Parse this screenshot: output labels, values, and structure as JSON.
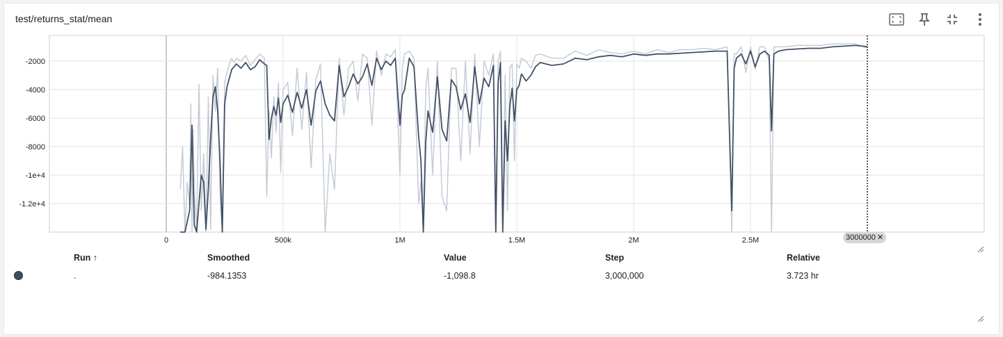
{
  "card": {
    "title": "test/returns_stat/mean"
  },
  "toolbar": {
    "icons": [
      "fit-domain-icon",
      "pin-icon",
      "collapse-icon",
      "more-vert-icon"
    ]
  },
  "chart_data": {
    "type": "line",
    "title": "test/returns_stat/mean",
    "xlabel": "",
    "ylabel": "",
    "xlim": [
      -500000,
      3500000
    ],
    "ylim": [
      -14000,
      -200
    ],
    "x_ticks": [
      {
        "value": 0,
        "label": "0"
      },
      {
        "value": 500000,
        "label": "500k"
      },
      {
        "value": 1000000,
        "label": "1M"
      },
      {
        "value": 1500000,
        "label": "1.5M"
      },
      {
        "value": 2000000,
        "label": "2M"
      },
      {
        "value": 2500000,
        "label": "2.5M"
      }
    ],
    "y_ticks": [
      {
        "value": -2000,
        "label": "-2000"
      },
      {
        "value": -4000,
        "label": "-4000"
      },
      {
        "value": -6000,
        "label": "-6000"
      },
      {
        "value": -8000,
        "label": "-8000"
      },
      {
        "value": -10000,
        "label": "-1e+4"
      },
      {
        "value": -12000,
        "label": "-1.2e+4"
      }
    ],
    "grid": true,
    "cursor_step": 3000000,
    "cursor_label": "3000000",
    "series": [
      {
        "name": "smoothed",
        "color": "#425066",
        "x": [
          60000,
          80000,
          100000,
          110000,
          120000,
          130000,
          140000,
          150000,
          160000,
          170000,
          180000,
          190000,
          200000,
          210000,
          220000,
          230000,
          240000,
          250000,
          260000,
          270000,
          280000,
          290000,
          300000,
          320000,
          340000,
          360000,
          380000,
          400000,
          420000,
          430000,
          440000,
          450000,
          460000,
          470000,
          480000,
          490000,
          500000,
          520000,
          540000,
          560000,
          580000,
          600000,
          620000,
          640000,
          660000,
          680000,
          700000,
          720000,
          740000,
          760000,
          780000,
          800000,
          820000,
          840000,
          860000,
          880000,
          900000,
          920000,
          940000,
          960000,
          980000,
          1000000,
          1010000,
          1020000,
          1040000,
          1060000,
          1080000,
          1090000,
          1100000,
          1110000,
          1120000,
          1140000,
          1160000,
          1180000,
          1200000,
          1220000,
          1240000,
          1260000,
          1280000,
          1300000,
          1320000,
          1340000,
          1360000,
          1380000,
          1400000,
          1410000,
          1420000,
          1430000,
          1440000,
          1450000,
          1460000,
          1470000,
          1480000,
          1490000,
          1500000,
          1510000,
          1520000,
          1540000,
          1560000,
          1580000,
          1600000,
          1650000,
          1700000,
          1750000,
          1800000,
          1850000,
          1900000,
          1950000,
          2000000,
          2050000,
          2100000,
          2150000,
          2200000,
          2250000,
          2300000,
          2350000,
          2400000,
          2420000,
          2430000,
          2440000,
          2460000,
          2480000,
          2500000,
          2520000,
          2540000,
          2560000,
          2580000,
          2590000,
          2600000,
          2620000,
          2650000,
          2700000,
          2750000,
          2800000,
          2850000,
          2900000,
          2950000,
          3000000
        ],
        "y": [
          -14000,
          -14000,
          -12500,
          -6500,
          -13500,
          -14000,
          -12000,
          -10000,
          -10500,
          -13800,
          -11000,
          -7500,
          -4500,
          -3800,
          -5500,
          -9000,
          -14000,
          -5000,
          -3800,
          -3200,
          -2600,
          -2400,
          -2200,
          -2500,
          -2100,
          -2600,
          -2400,
          -1900,
          -2200,
          -2300,
          -7500,
          -6000,
          -5200,
          -5800,
          -4600,
          -6300,
          -5000,
          -4400,
          -5600,
          -4200,
          -5300,
          -4000,
          -6500,
          -4100,
          -3400,
          -5000,
          -5800,
          -6200,
          -2300,
          -4500,
          -3800,
          -2900,
          -3600,
          -3100,
          -2200,
          -3700,
          -1800,
          -2600,
          -2000,
          -2300,
          -1800,
          -6500,
          -4400,
          -4000,
          -1800,
          -2400,
          -7300,
          -9000,
          -14000,
          -7800,
          -5500,
          -7000,
          -3100,
          -6800,
          -7600,
          -3300,
          -3800,
          -5400,
          -4300,
          -6300,
          -2400,
          -5000,
          -3200,
          -3800,
          -2300,
          -14000,
          -3600,
          -2100,
          -14000,
          -6200,
          -9000,
          -5200,
          -3900,
          -6200,
          -4000,
          -3700,
          -2900,
          -3400,
          -3000,
          -2400,
          -2100,
          -2300,
          -2200,
          -1800,
          -1900,
          -1700,
          -1600,
          -1700,
          -1500,
          -1600,
          -1500,
          -1500,
          -1450,
          -1400,
          -1350,
          -1300,
          -1300,
          -12500,
          -2500,
          -1800,
          -1500,
          -2200,
          -1300,
          -2400,
          -1500,
          -1300,
          -1600,
          -6900,
          -1500,
          -1300,
          -1200,
          -1150,
          -1100,
          -1100,
          -1000,
          -950,
          -900,
          -984
        ]
      },
      {
        "name": "raw",
        "color": "#c5cbd6",
        "x": [
          60000,
          70000,
          80000,
          90000,
          100000,
          105000,
          110000,
          115000,
          120000,
          130000,
          140000,
          150000,
          160000,
          170000,
          180000,
          190000,
          200000,
          210000,
          220000,
          230000,
          240000,
          250000,
          260000,
          270000,
          280000,
          290000,
          300000,
          320000,
          340000,
          360000,
          380000,
          400000,
          420000,
          430000,
          440000,
          450000,
          460000,
          470000,
          480000,
          490000,
          500000,
          520000,
          540000,
          560000,
          580000,
          600000,
          620000,
          640000,
          660000,
          680000,
          700000,
          720000,
          740000,
          760000,
          780000,
          800000,
          820000,
          840000,
          860000,
          880000,
          900000,
          920000,
          940000,
          960000,
          980000,
          1000000,
          1010000,
          1020000,
          1040000,
          1060000,
          1080000,
          1090000,
          1100000,
          1110000,
          1120000,
          1140000,
          1160000,
          1180000,
          1200000,
          1220000,
          1240000,
          1260000,
          1280000,
          1300000,
          1320000,
          1340000,
          1360000,
          1380000,
          1400000,
          1410000,
          1420000,
          1430000,
          1440000,
          1450000,
          1460000,
          1470000,
          1480000,
          1490000,
          1500000,
          1510000,
          1520000,
          1540000,
          1560000,
          1580000,
          1600000,
          1650000,
          1700000,
          1750000,
          1800000,
          1850000,
          1900000,
          1950000,
          2000000,
          2050000,
          2100000,
          2150000,
          2200000,
          2250000,
          2300000,
          2350000,
          2400000,
          2420000,
          2430000,
          2440000,
          2460000,
          2480000,
          2500000,
          2520000,
          2540000,
          2560000,
          2580000,
          2590000,
          2600000,
          2620000,
          2650000,
          2700000,
          2750000,
          2800000,
          2850000,
          2900000,
          2950000,
          3000000
        ],
        "y": [
          -11000,
          -8000,
          -14000,
          -10500,
          -12000,
          -5000,
          -14000,
          -6800,
          -11000,
          -14000,
          -3600,
          -12500,
          -8500,
          -14000,
          -4500,
          -13800,
          -3000,
          -5500,
          -2500,
          -11500,
          -14000,
          -3500,
          -2800,
          -2200,
          -1800,
          -2100,
          -1800,
          -2000,
          -1600,
          -2300,
          -1900,
          -1500,
          -1800,
          -11500,
          -5500,
          -8800,
          -4500,
          -7000,
          -3500,
          -9800,
          -4000,
          -3500,
          -7200,
          -2500,
          -6800,
          -2800,
          -9500,
          -3300,
          -2200,
          -14000,
          -8500,
          -11000,
          -1800,
          -5800,
          -2500,
          -2000,
          -4800,
          -1500,
          -1800,
          -6500,
          -1300,
          -3000,
          -1500,
          -1700,
          -1200,
          -10000,
          -2500,
          -1500,
          -1300,
          -1800,
          -12000,
          -10500,
          -14000,
          -4000,
          -2500,
          -10000,
          -2000,
          -11500,
          -12500,
          -2500,
          -2500,
          -9000,
          -2000,
          -8500,
          -1500,
          -8000,
          -2000,
          -3000,
          -1500,
          -14000,
          -2000,
          -1300,
          -14000,
          -3000,
          -12500,
          -2500,
          -2200,
          -9000,
          -2200,
          -2500,
          -1800,
          -2000,
          -2500,
          -1600,
          -1500,
          -1800,
          -1800,
          -1300,
          -1600,
          -1200,
          -1400,
          -1500,
          -1300,
          -1500,
          -1200,
          -1400,
          -1200,
          -1200,
          -1100,
          -1200,
          -1000,
          -14000,
          -1500,
          -1500,
          -1000,
          -2800,
          -1000,
          -2600,
          -1000,
          -1000,
          -2000,
          -14000,
          -1000,
          -1000,
          -1000,
          -900,
          -900,
          -900,
          -800,
          -800,
          -800,
          -1099
        ]
      }
    ]
  },
  "table": {
    "headers": {
      "run": "Run",
      "run_sort": "↑",
      "smoothed": "Smoothed",
      "value": "Value",
      "step": "Step",
      "relative": "Relative"
    },
    "row": {
      "run": ".",
      "smoothed": "-984.1353",
      "value": "-1,098.8",
      "step": "3,000,000",
      "relative": "3.723 hr",
      "color": "#3f4c60"
    }
  }
}
